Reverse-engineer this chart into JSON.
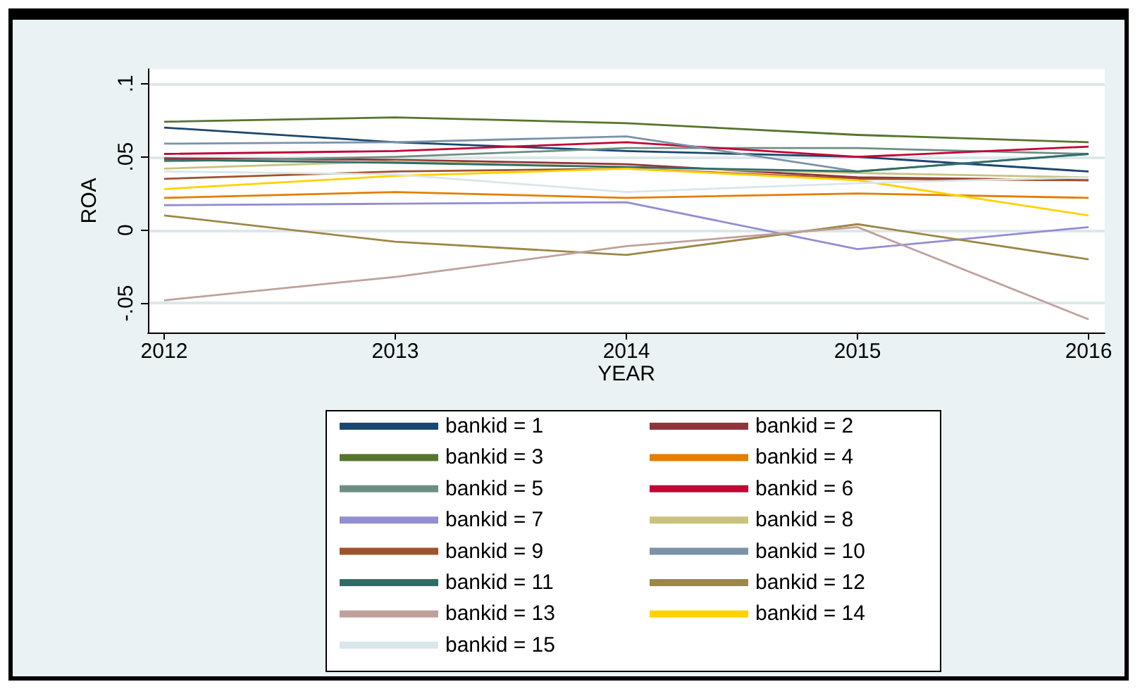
{
  "chart_data": {
    "type": "line",
    "xlabel": "YEAR",
    "ylabel": "ROA",
    "x": [
      2012,
      2013,
      2014,
      2015,
      2016
    ],
    "xlim": [
      2011.93,
      2016.07
    ],
    "xticks": [
      2012,
      2013,
      2014,
      2015,
      2016
    ],
    "ylim": [
      -0.07,
      0.11
    ],
    "yticks": [
      {
        "value": -0.05,
        "label": "-.05"
      },
      {
        "value": 0,
        "label": "0"
      },
      {
        "value": 0.05,
        "label": ".05"
      },
      {
        "value": 0.1,
        "label": ".1"
      }
    ],
    "grid": "y",
    "legend": "bottom",
    "marker": "none",
    "line_style": "solid",
    "series": [
      {
        "name": "bankid = 1",
        "color": "#1a476f",
        "values": [
          0.07,
          0.06,
          0.054,
          0.05,
          0.04
        ]
      },
      {
        "name": "bankid = 2",
        "color": "#90353b",
        "values": [
          0.049,
          0.048,
          0.045,
          0.036,
          0.034
        ]
      },
      {
        "name": "bankid = 3",
        "color": "#55752f",
        "values": [
          0.074,
          0.077,
          0.073,
          0.065,
          0.06
        ]
      },
      {
        "name": "bankid = 4",
        "color": "#e37e00",
        "values": [
          0.022,
          0.026,
          0.022,
          0.025,
          0.022
        ]
      },
      {
        "name": "bankid = 5",
        "color": "#6e8e84",
        "values": [
          0.047,
          0.05,
          0.056,
          0.056,
          0.052
        ]
      },
      {
        "name": "bankid = 6",
        "color": "#c10534",
        "values": [
          0.052,
          0.054,
          0.06,
          0.05,
          0.057
        ]
      },
      {
        "name": "bankid = 7",
        "color": "#938dd2",
        "values": [
          0.017,
          0.018,
          0.019,
          -0.013,
          0.002
        ]
      },
      {
        "name": "bankid = 8",
        "color": "#cac27e",
        "values": [
          0.042,
          0.047,
          0.043,
          0.039,
          0.036
        ]
      },
      {
        "name": "bankid = 9",
        "color": "#a0522d",
        "values": [
          0.035,
          0.04,
          0.042,
          0.035,
          0.034
        ]
      },
      {
        "name": "bankid = 10",
        "color": "#7b92a8",
        "values": [
          0.059,
          0.06,
          0.064,
          0.04,
          0.052
        ]
      },
      {
        "name": "bankid = 11",
        "color": "#2d6d66",
        "values": [
          0.048,
          0.046,
          0.043,
          0.04,
          0.052
        ]
      },
      {
        "name": "bankid = 12",
        "color": "#9c8847",
        "values": [
          0.01,
          -0.008,
          -0.017,
          0.004,
          -0.02
        ]
      },
      {
        "name": "bankid = 13",
        "color": "#bfa19c",
        "values": [
          -0.048,
          -0.032,
          -0.011,
          0.002,
          -0.061
        ]
      },
      {
        "name": "bankid = 14",
        "color": "#ffd200",
        "values": [
          0.028,
          0.037,
          0.042,
          0.034,
          0.01
        ]
      },
      {
        "name": "bankid = 15",
        "color": "#d9e6eb",
        "values": [
          0.04,
          0.038,
          0.026,
          0.032,
          0.036
        ]
      }
    ]
  }
}
